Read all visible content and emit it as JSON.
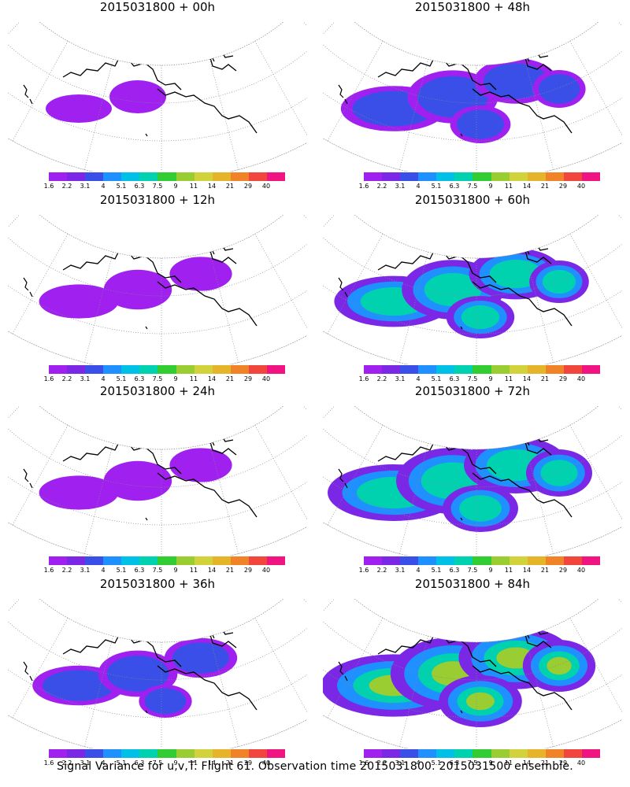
{
  "caption": "Signal Variance for u,v,T. Flight 61. Observation time 2015031800. 2015031500 ensemble.",
  "colorbar": {
    "labels": [
      "1.6",
      "2.2",
      "3.1",
      "4",
      "5.1",
      "6.3",
      "7.5",
      "9",
      "11",
      "14",
      "21",
      "29",
      "40"
    ],
    "colors": [
      "#a020f0",
      "#7a28e6",
      "#3a4fe8",
      "#1e90ff",
      "#00c0e8",
      "#00d2b0",
      "#32cd32",
      "#9acd32",
      "#d2d23c",
      "#e6b428",
      "#f08228",
      "#f0463c",
      "#f01482"
    ]
  },
  "panels": [
    {
      "title": "2015031800 + 00h",
      "level": 0
    },
    {
      "title": "2015031800 + 48h",
      "level": 3
    },
    {
      "title": "2015031800 + 12h",
      "level": 1
    },
    {
      "title": "2015031800 + 60h",
      "level": 4
    },
    {
      "title": "2015031800 + 24h",
      "level": 1
    },
    {
      "title": "2015031800 + 72h",
      "level": 5
    },
    {
      "title": "2015031800 + 36h",
      "level": 2
    },
    {
      "title": "2015031800 + 84h",
      "level": 6
    }
  ]
}
